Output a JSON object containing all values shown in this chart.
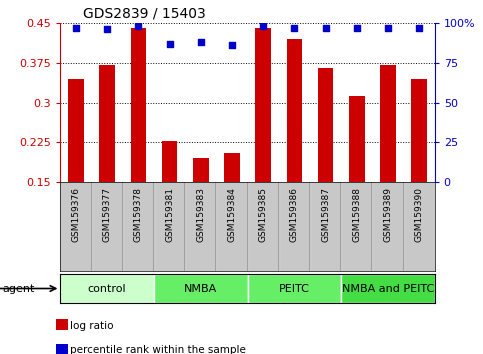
{
  "title": "GDS2839 / 15403",
  "samples": [
    "GSM159376",
    "GSM159377",
    "GSM159378",
    "GSM159381",
    "GSM159383",
    "GSM159384",
    "GSM159385",
    "GSM159386",
    "GSM159387",
    "GSM159388",
    "GSM159389",
    "GSM159390"
  ],
  "log_ratios": [
    0.345,
    0.37,
    0.44,
    0.227,
    0.195,
    0.205,
    0.44,
    0.42,
    0.365,
    0.312,
    0.37,
    0.345
  ],
  "percentile_ranks": [
    97,
    96,
    98,
    87,
    88,
    86,
    98,
    97,
    97,
    97,
    97,
    97
  ],
  "bar_color": "#cc0000",
  "dot_color": "#0000cc",
  "ylim_left": [
    0.15,
    0.45
  ],
  "ylim_right": [
    0,
    100
  ],
  "yticks_left": [
    0.15,
    0.225,
    0.3,
    0.375,
    0.45
  ],
  "ytick_labels_left": [
    "0.15",
    "0.225",
    "0.3",
    "0.375",
    "0.45"
  ],
  "yticks_right": [
    0,
    25,
    50,
    75,
    100
  ],
  "ytick_labels_right": [
    "0",
    "25",
    "50",
    "75",
    "100%"
  ],
  "groups": [
    {
      "label": "control",
      "start": 0,
      "end": 3,
      "color": "#ccffcc"
    },
    {
      "label": "NMBA",
      "start": 3,
      "end": 6,
      "color": "#66ee66"
    },
    {
      "label": "PEITC",
      "start": 6,
      "end": 9,
      "color": "#66ee66"
    },
    {
      "label": "NMBA and PEITC",
      "start": 9,
      "end": 12,
      "color": "#44dd44"
    }
  ],
  "legend_items": [
    {
      "label": "log ratio",
      "color": "#cc0000"
    },
    {
      "label": "percentile rank within the sample",
      "color": "#0000cc"
    }
  ],
  "agent_label": "agent",
  "tick_color_left": "#cc0000",
  "tick_color_right": "#0000cc",
  "background_color": "#ffffff",
  "xlabels_bg": "#c8c8c8",
  "bar_width": 0.5,
  "title_fontsize": 10,
  "tick_fontsize": 8,
  "label_fontsize": 7,
  "group_fontsize": 8
}
